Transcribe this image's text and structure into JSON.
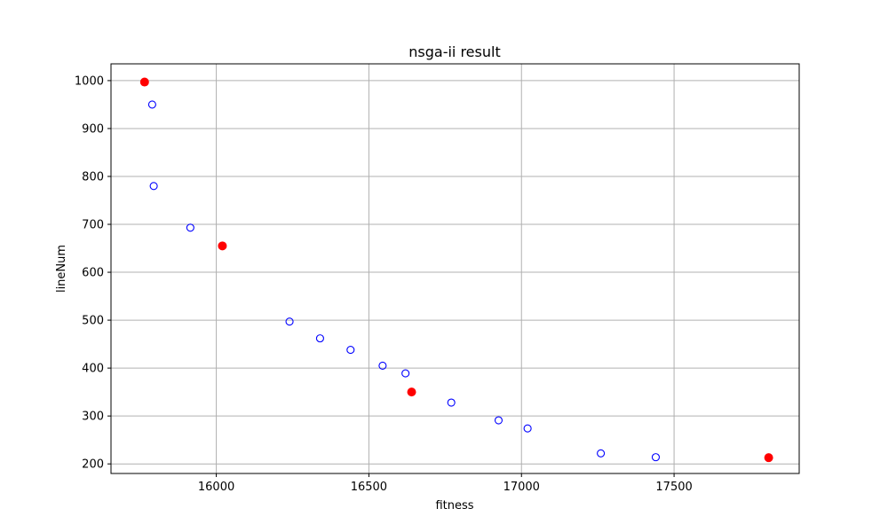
{
  "chart_data": {
    "type": "scatter",
    "title": "nsga-ii result",
    "xlabel": "fitness",
    "ylabel": "lineNum",
    "xlim": [
      15655,
      17910
    ],
    "ylim": [
      180,
      1035
    ],
    "xticks": [
      16000,
      16500,
      17000,
      17500
    ],
    "yticks": [
      200,
      300,
      400,
      500,
      600,
      700,
      800,
      900,
      1000
    ],
    "grid": true,
    "series": [
      {
        "style": "hollow",
        "color": "#0000ff",
        "points": [
          {
            "x": 15790,
            "y": 950
          },
          {
            "x": 15795,
            "y": 780
          },
          {
            "x": 15915,
            "y": 693
          },
          {
            "x": 16240,
            "y": 497
          },
          {
            "x": 16340,
            "y": 462
          },
          {
            "x": 16440,
            "y": 438
          },
          {
            "x": 16545,
            "y": 405
          },
          {
            "x": 16620,
            "y": 389
          },
          {
            "x": 16770,
            "y": 328
          },
          {
            "x": 16925,
            "y": 291
          },
          {
            "x": 17020,
            "y": 274
          },
          {
            "x": 17260,
            "y": 222
          },
          {
            "x": 17440,
            "y": 214
          }
        ]
      },
      {
        "style": "filled",
        "color": "#ff0000",
        "points": [
          {
            "x": 15765,
            "y": 997
          },
          {
            "x": 16020,
            "y": 655
          },
          {
            "x": 16640,
            "y": 350
          },
          {
            "x": 17810,
            "y": 213
          }
        ]
      }
    ]
  }
}
